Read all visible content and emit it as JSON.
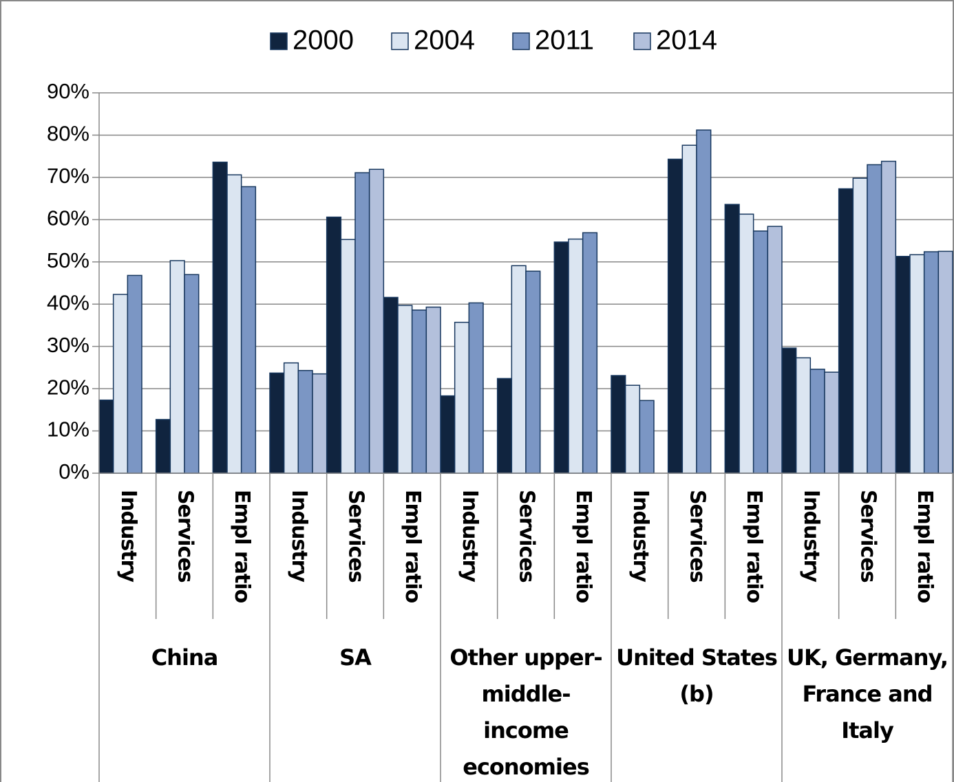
{
  "chart_data": {
    "type": "bar",
    "categories": [
      "Industry",
      "Services",
      "Empl ratio",
      "Industry",
      "Services",
      "Empl ratio",
      "Industry",
      "Services",
      "Empl ratio",
      "Industry",
      "Services",
      "Empl ratio",
      "Industry",
      "Services",
      "Empl ratio"
    ],
    "groups": [
      "China",
      "SA",
      "Other upper-middle-income economies",
      "United States (b)",
      "UK, Germany, France and Italy"
    ],
    "series": [
      {
        "name": "2000",
        "color": "#10243f",
        "values": [
          17.3,
          12.7,
          73.6,
          23.7,
          60.6,
          41.6,
          18.3,
          22.4,
          54.7,
          23.1,
          74.3,
          63.6,
          29.6,
          67.3,
          51.3
        ]
      },
      {
        "name": "2004",
        "color": "#dbe5f1",
        "values": [
          42.3,
          50.3,
          70.6,
          26.1,
          55.3,
          39.7,
          35.7,
          49.1,
          55.4,
          20.8,
          77.6,
          61.3,
          27.3,
          69.8,
          51.7
        ]
      },
      {
        "name": "2011",
        "color": "#7b96c4",
        "values": [
          46.8,
          47.0,
          67.8,
          24.3,
          71.1,
          38.6,
          40.3,
          47.8,
          56.9,
          17.2,
          81.2,
          57.3,
          24.6,
          73.0,
          52.4
        ]
      },
      {
        "name": "2014",
        "color": "#b3c0dc",
        "values": [
          null,
          null,
          null,
          23.5,
          71.9,
          39.3,
          null,
          null,
          null,
          null,
          null,
          58.4,
          23.9,
          73.8,
          52.5
        ]
      }
    ],
    "ylim": [
      0,
      90
    ],
    "yticks": [
      {
        "value": 0,
        "label": "0%"
      },
      {
        "value": 10,
        "label": "10%"
      },
      {
        "value": 20,
        "label": "20%"
      },
      {
        "value": 30,
        "label": "30%"
      },
      {
        "value": 40,
        "label": "40%"
      },
      {
        "value": 50,
        "label": "50%"
      },
      {
        "value": 60,
        "label": "60%"
      },
      {
        "value": 70,
        "label": "70%"
      },
      {
        "value": 80,
        "label": "80%"
      },
      {
        "value": 90,
        "label": "90%"
      }
    ],
    "grid": true,
    "legend": "top"
  }
}
